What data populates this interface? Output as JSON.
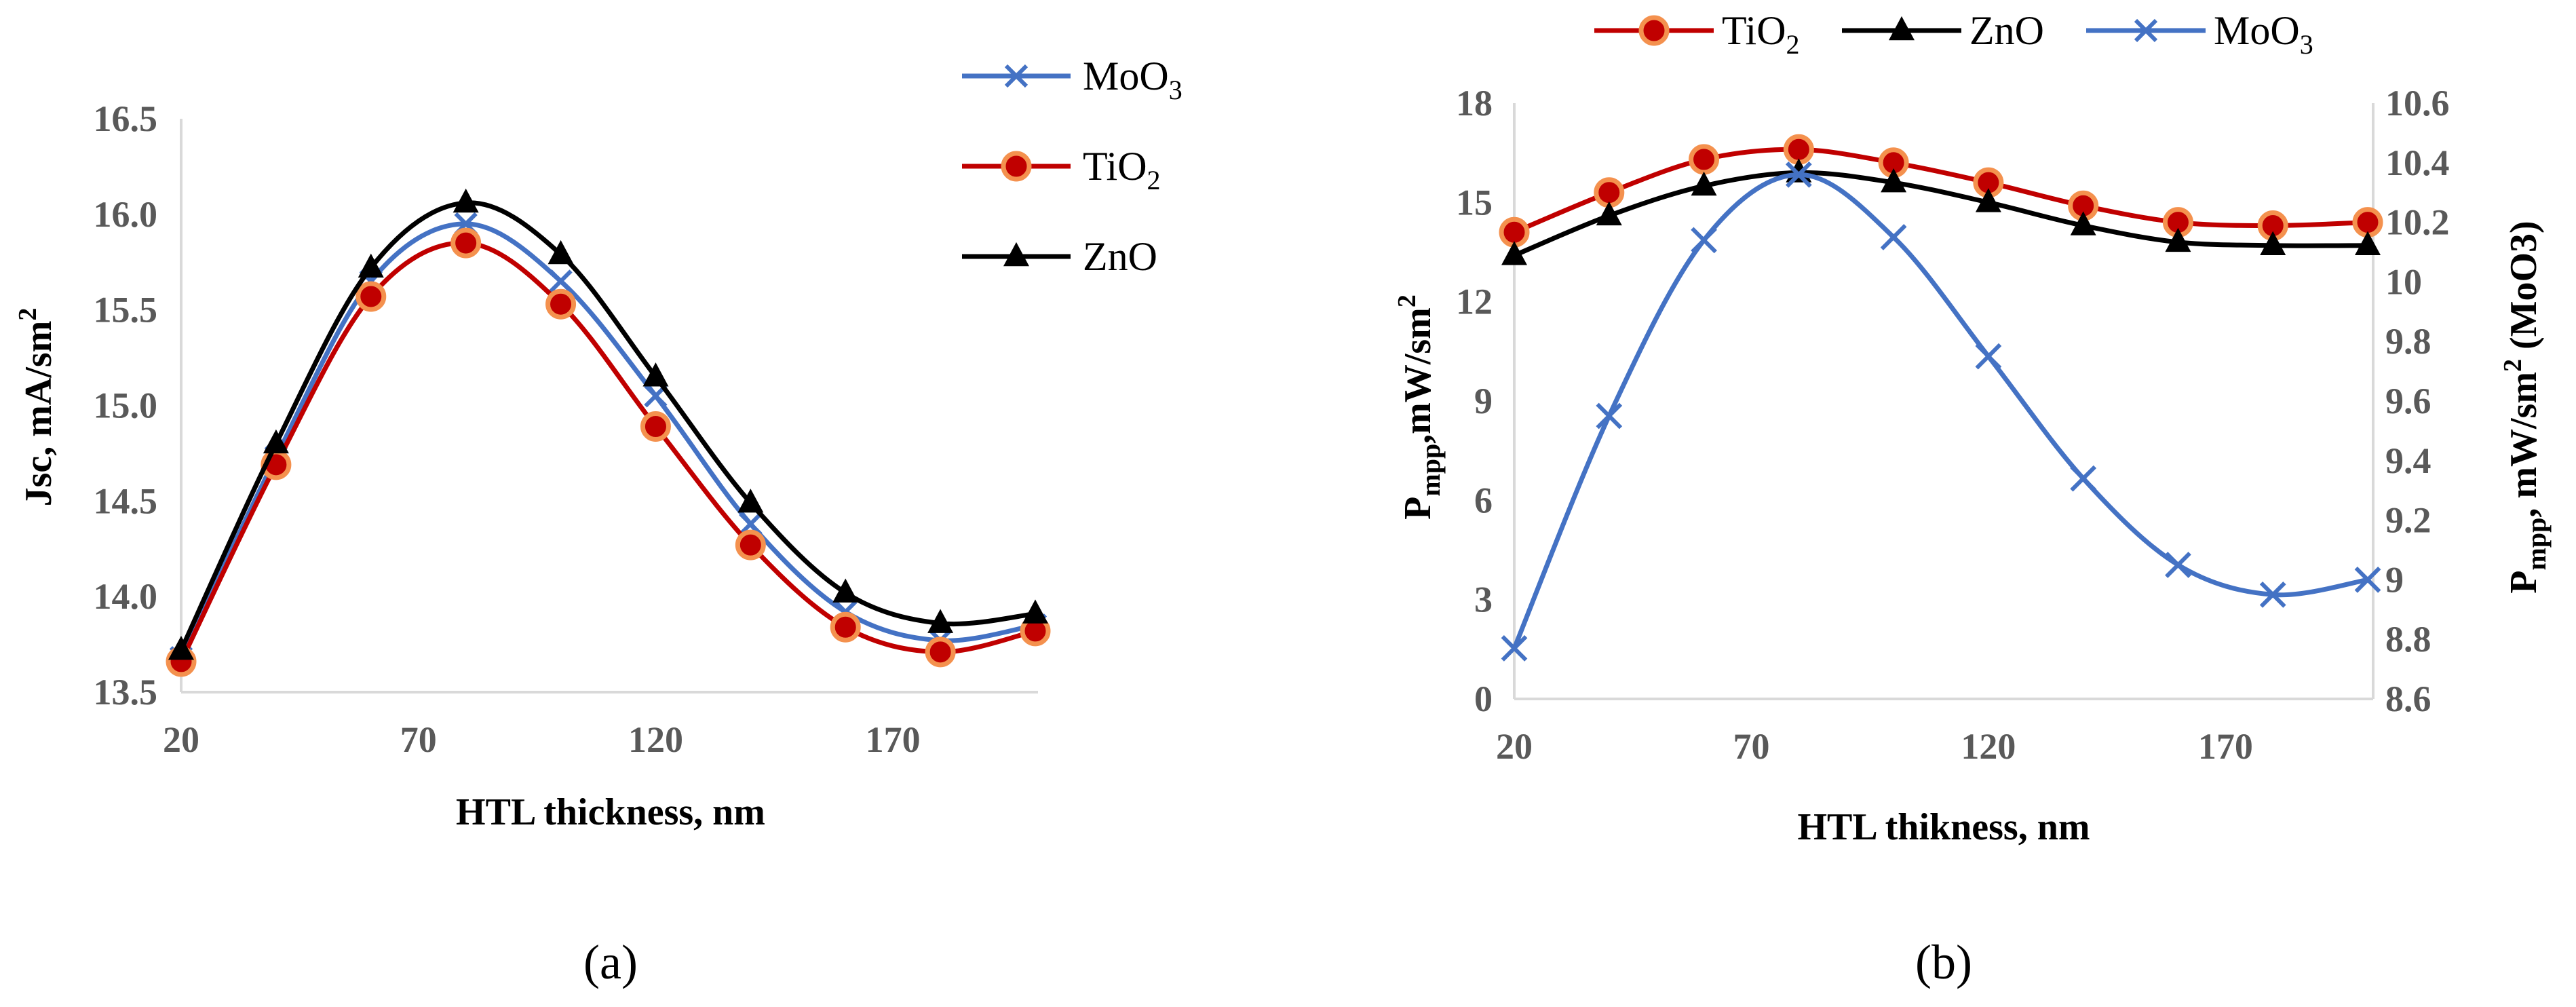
{
  "panel_labels": {
    "a": "(a)",
    "b": "(b)"
  },
  "colors": {
    "moo3": "#4472c4",
    "tio2": "#c00000",
    "tio2_marker": "#f4914e",
    "zno": "#000000",
    "axis": "#d9d9d9",
    "tick_text": "#595959"
  },
  "chart_data": [
    {
      "id": "a",
      "type": "line",
      "title": "",
      "xlabel": "HTL thickness, nm",
      "ylabel": "Jsc, mA/sm",
      "ylabel_sup": "2",
      "x": [
        20,
        40,
        60,
        80,
        100,
        120,
        140,
        160,
        180,
        200
      ],
      "xlim": [
        20,
        200
      ],
      "xticks": [
        20,
        70,
        120,
        170
      ],
      "xtick_labels": [
        "20",
        "70",
        "120",
        "170"
      ],
      "ylim": [
        13.5,
        16.5
      ],
      "yticks": [
        13.5,
        14.0,
        14.5,
        15.0,
        15.5,
        16.0,
        16.5
      ],
      "ytick_labels": [
        "13.5",
        "14.0",
        "14.5",
        "15.0",
        "15.5",
        "16.0",
        "16.5"
      ],
      "legend_position": "top-right-outside",
      "series": [
        {
          "key": "moo3",
          "name": "MoO",
          "sub": "3",
          "marker": "x",
          "values": [
            13.68,
            14.73,
            15.65,
            15.95,
            15.65,
            15.05,
            14.38,
            13.92,
            13.77,
            13.85
          ]
        },
        {
          "key": "tio2",
          "name": "TiO",
          "sub": "2",
          "marker": "circle",
          "values": [
            13.66,
            14.69,
            15.57,
            15.85,
            15.53,
            14.89,
            14.27,
            13.84,
            13.71,
            13.82
          ]
        },
        {
          "key": "zno",
          "name": "ZnO",
          "sub": "",
          "marker": "triangle",
          "values": [
            13.72,
            14.8,
            15.72,
            16.06,
            15.79,
            15.15,
            14.49,
            14.02,
            13.86,
            13.91
          ]
        }
      ]
    },
    {
      "id": "b",
      "type": "line",
      "title": "",
      "xlabel": "HTL thikness, nm",
      "ylabel": {
        "main": "P",
        "sub": "mpp",
        "rest": ",mW/sm",
        "sup": "2"
      },
      "y2label": {
        "main": "P",
        "sub": "mpp",
        "rest": ", mW/sm",
        "sup": "2",
        "tail": " (MoO3)"
      },
      "x": [
        20,
        40,
        60,
        80,
        100,
        120,
        140,
        160,
        180,
        200
      ],
      "xlim": [
        20,
        200
      ],
      "xticks": [
        20,
        70,
        120,
        170
      ],
      "xtick_labels": [
        "20",
        "70",
        "120",
        "170"
      ],
      "ylim": [
        0,
        18
      ],
      "yticks": [
        0,
        3,
        6,
        9,
        12,
        15,
        18
      ],
      "ytick_labels": [
        "0",
        "3",
        "6",
        "9",
        "12",
        "15",
        "18"
      ],
      "y2lim": [
        8.6,
        10.6
      ],
      "y2ticks": [
        8.6,
        8.8,
        9.0,
        9.2,
        9.4,
        9.6,
        9.8,
        10.0,
        10.2,
        10.4,
        10.6
      ],
      "y2tick_labels": [
        "8.6",
        "8.8",
        "9",
        "9.2",
        "9.4",
        "9.6",
        "9.8",
        "10",
        "10.2",
        "10.4",
        "10.6"
      ],
      "legend_position": "top",
      "series": [
        {
          "key": "tio2",
          "name": "TiO",
          "sub": "2",
          "marker": "circle",
          "axis": "left",
          "values": [
            14.1,
            15.3,
            16.3,
            16.6,
            16.2,
            15.6,
            14.9,
            14.4,
            14.3,
            14.4
          ]
        },
        {
          "key": "zno",
          "name": "ZnO",
          "sub": "",
          "marker": "triangle",
          "axis": "left",
          "values": [
            13.4,
            14.6,
            15.5,
            15.9,
            15.6,
            15.0,
            14.3,
            13.8,
            13.7,
            13.7
          ]
        },
        {
          "key": "moo3",
          "name": "MoO",
          "sub": "3",
          "marker": "x",
          "axis": "right",
          "values": [
            8.77,
            9.55,
            10.14,
            10.36,
            10.15,
            9.75,
            9.34,
            9.05,
            8.95,
            9.0
          ]
        }
      ]
    }
  ]
}
